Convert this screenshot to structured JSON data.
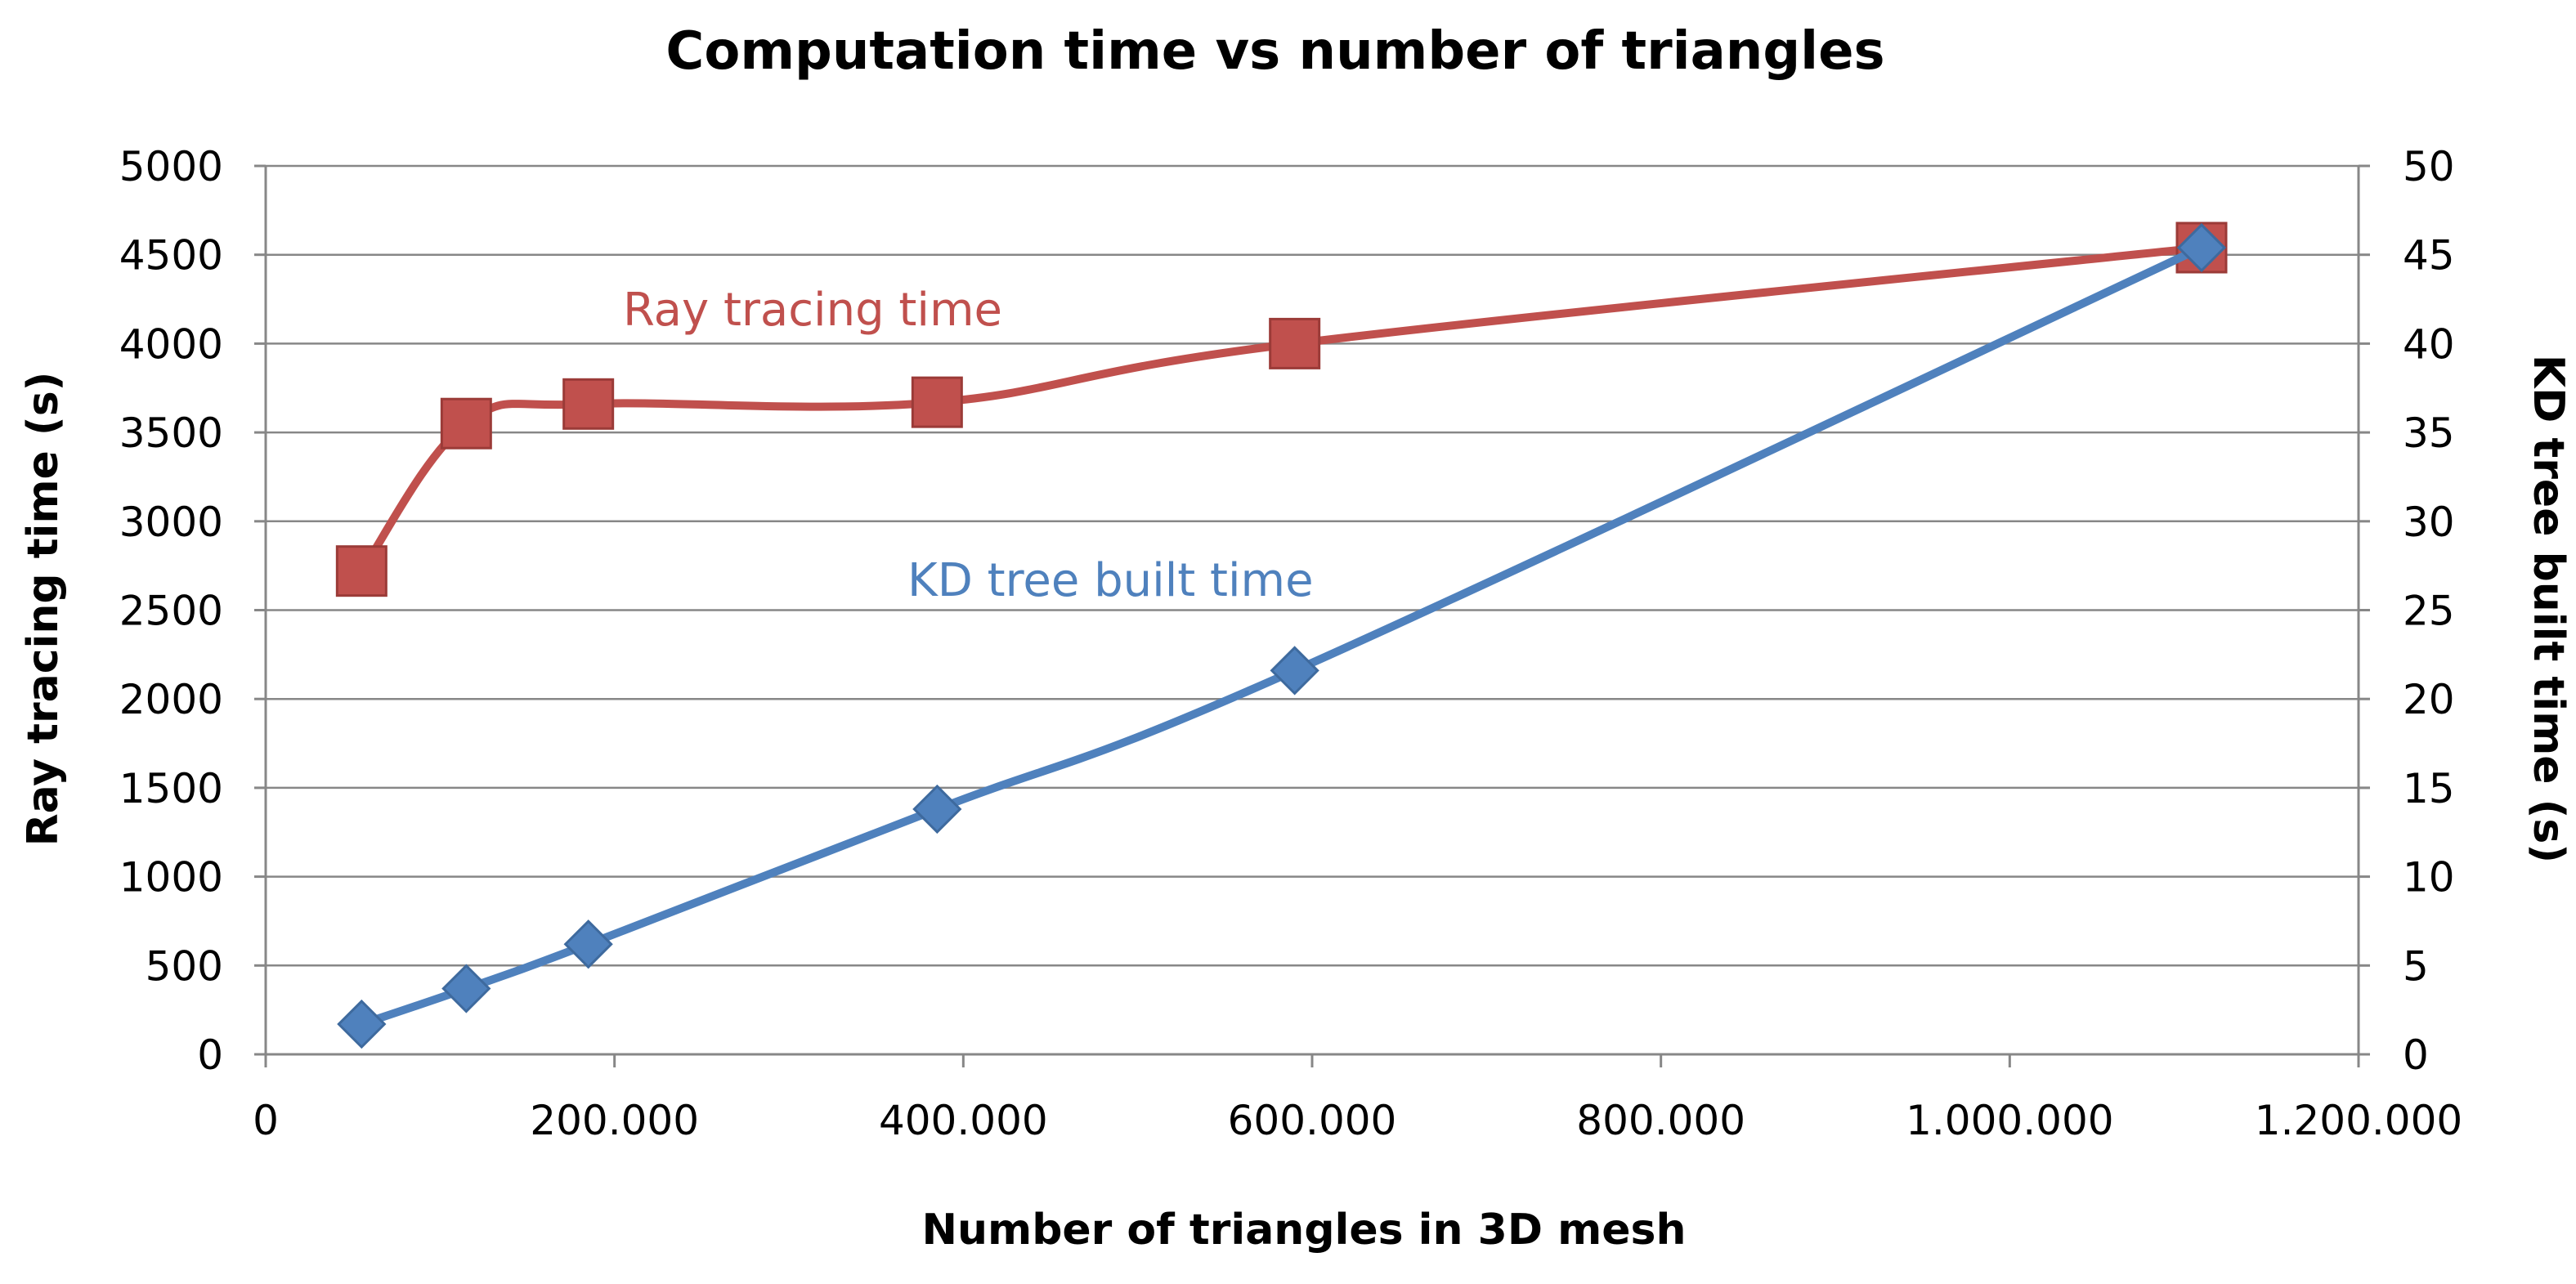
{
  "chart_data": {
    "type": "line",
    "title": "Computation time vs number of triangles",
    "xlabel": "Number of triangles in 3D mesh",
    "ylabel": "Ray tracing time (s)",
    "y2label": "KD tree built time (s)",
    "xlim": [
      0,
      1200000
    ],
    "ylim": [
      0,
      5000
    ],
    "y2lim": [
      0,
      50
    ],
    "x_ticks": [
      0,
      200000,
      400000,
      600000,
      800000,
      1000000,
      1200000
    ],
    "x_tick_labels": [
      "0",
      "200.000",
      "400.000",
      "600.000",
      "800.000",
      "1.000.000",
      "1.200.000"
    ],
    "y_ticks": [
      0,
      500,
      1000,
      1500,
      2000,
      2500,
      3000,
      3500,
      4000,
      4500,
      5000
    ],
    "y_tick_labels": [
      "0",
      "500",
      "1000",
      "1500",
      "2000",
      "2500",
      "3000",
      "3500",
      "4000",
      "4500",
      "5000"
    ],
    "y2_ticks": [
      0,
      5,
      10,
      15,
      20,
      25,
      30,
      35,
      40,
      45,
      50
    ],
    "y2_tick_labels": [
      "0",
      "5",
      "10",
      "15",
      "20",
      "25",
      "30",
      "35",
      "40",
      "45",
      "50"
    ],
    "grid": true,
    "series": [
      {
        "name": "Ray tracing time",
        "axis": "left",
        "color": "#c0504d",
        "marker": "square",
        "x": [
          55000,
          115000,
          185000,
          385000,
          590000,
          1110000
        ],
        "y": [
          2720,
          3550,
          3660,
          3670,
          4000,
          4540
        ]
      },
      {
        "name": "KD tree built time",
        "axis": "right",
        "color": "#4f81bd",
        "marker": "diamond",
        "x": [
          55000,
          115000,
          185000,
          385000,
          590000,
          1110000
        ],
        "y": [
          1.7,
          3.7,
          6.2,
          13.8,
          21.6,
          45.4
        ]
      }
    ],
    "annotations": [
      {
        "text": "Ray tracing time",
        "series": "Ray tracing time",
        "color": "#c0504d"
      },
      {
        "text": "KD tree built time",
        "series": "KD tree built time",
        "color": "#4f81bd"
      }
    ]
  }
}
